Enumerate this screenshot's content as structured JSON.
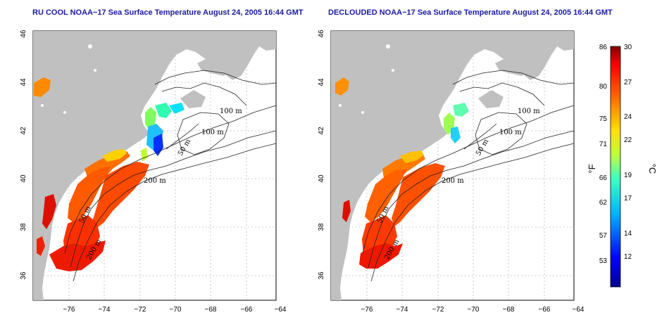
{
  "panels": [
    {
      "title": "RU COOL NOAA−17 Sea Surface Temperature August 24, 2005 16:44 GMT",
      "variant": "cool"
    },
    {
      "title": "DECLOUDED NOAA−17 Sea Surface Temperature August 24, 2005 16:44 GMT",
      "variant": "declouded"
    }
  ],
  "axes": {
    "x_ticks": [
      "−76",
      "−74",
      "−72",
      "−70",
      "−68",
      "−66",
      "−64"
    ],
    "y_ticks": [
      "36",
      "38",
      "40",
      "42",
      "44",
      "46"
    ]
  },
  "contour_labels": [
    "100 m",
    "100 m",
    "50 m",
    "200 m",
    "50 m",
    "200 m"
  ],
  "colorbar": {
    "f_ticks": [
      "86",
      "80",
      "75",
      "71",
      "66",
      "62",
      "57",
      "53"
    ],
    "c_ticks": [
      "30",
      "27",
      "24",
      "22",
      "19",
      "17",
      "14",
      "12"
    ],
    "f_unit": "°F",
    "c_unit": "°C"
  },
  "colors": {
    "land": "#c0c0c0",
    "title": "#1a1aa6"
  }
}
